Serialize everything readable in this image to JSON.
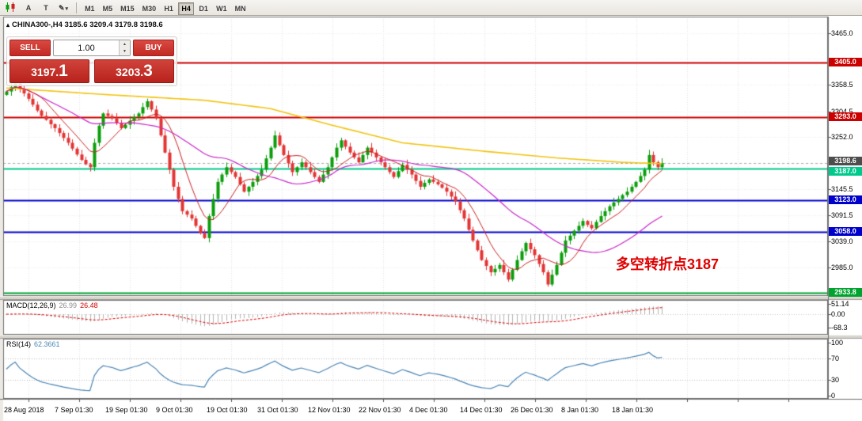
{
  "toolbar": {
    "buttons": [
      {
        "name": "charts-icon"
      },
      {
        "name": "label-tool",
        "glyph": "A"
      },
      {
        "name": "text-tool",
        "glyph": "T"
      },
      {
        "name": "pencil-tool",
        "glyph": "✎",
        "caret": "▾"
      }
    ],
    "timeframes": [
      "M1",
      "M5",
      "M15",
      "M30",
      "H1",
      "H4",
      "D1",
      "W1",
      "MN"
    ],
    "active_timeframe": "H4"
  },
  "trade_panel": {
    "sell_label": "SELL",
    "buy_label": "BUY",
    "volume": "1.00",
    "bid": "3197.1",
    "ask": "3203.3",
    "spin_up": "▲",
    "spin_down": "▼"
  },
  "chart": {
    "marker": "▴",
    "title": "CHINA300-,H4 3185.6 3209.4 3179.8 3198.6",
    "annotation": "多空转折点3187",
    "price_ticks": [
      3465.0,
      3358.5,
      3304.5,
      3252.0,
      3145.5,
      3091.5,
      3039.0,
      2985.0
    ],
    "levels": [
      {
        "price": 3405.0,
        "label": "3405.0",
        "color": "#cc0000"
      },
      {
        "price": 3293.0,
        "label": "3293.0",
        "color": "#cc0000"
      },
      {
        "price": 3187.0,
        "label": "3187.0",
        "color": "#00c98c"
      },
      {
        "price": 3123.0,
        "label": "3123.0",
        "color": "#0000cc"
      },
      {
        "price": 3058.0,
        "label": "3058.0",
        "color": "#0000cc"
      },
      {
        "price": 2933.8,
        "label": "2933.8",
        "color": "#00a32e"
      }
    ],
    "current_price": 3198.6,
    "current_price_label": "3198.6",
    "current_price_color": "#4d4d4d",
    "time_labels": [
      "28 Aug 2018",
      "7 Sep 01:30",
      "19 Sep 01:30",
      "9 Oct 01:30",
      "19 Oct 01:30",
      "31 Oct 01:30",
      "12 Nov 01:30",
      "22 Nov 01:30",
      "4 Dec 01:30",
      "14 Dec 01:30",
      "26 Dec 01:30",
      "8 Jan 01:30",
      "18 Jan 01:30"
    ]
  },
  "macd": {
    "label": "MACD(12,26,9)",
    "value_main": "26.99",
    "value_signal": "26.48",
    "ticks": [
      {
        "v": 51.14,
        "label": "51.14"
      },
      {
        "v": 0,
        "label": "0.00"
      },
      {
        "v": -68.3,
        "label": "-68.3"
      }
    ]
  },
  "rsi": {
    "label": "RSI(14)",
    "value": "62.3661",
    "ticks": [
      {
        "v": 100,
        "label": "100"
      },
      {
        "v": 70,
        "label": "70"
      },
      {
        "v": 30,
        "label": "30"
      },
      {
        "v": 0,
        "label": "0"
      }
    ],
    "levels": [
      70,
      30
    ]
  },
  "chart_data": {
    "type": "candlestick",
    "symbol": "CHINA300-",
    "timeframe": "H4",
    "ohlc_current": {
      "open": 3185.6,
      "high": 3209.4,
      "low": 3179.8,
      "close": 3198.6
    },
    "y_axis_range": [
      2927,
      3497
    ],
    "first_open": 3338,
    "closes": [
      3345,
      3354,
      3362,
      3350,
      3341,
      3330,
      3318,
      3306,
      3295,
      3287,
      3278,
      3270,
      3260,
      3250,
      3240,
      3228,
      3216,
      3205,
      3196,
      3190,
      3240,
      3275,
      3300,
      3295,
      3290,
      3280,
      3270,
      3277,
      3285,
      3293,
      3300,
      3313,
      3325,
      3308,
      3290,
      3255,
      3220,
      3185,
      3150,
      3125,
      3100,
      3093,
      3085,
      3070,
      3055,
      3045,
      3090,
      3125,
      3160,
      3175,
      3190,
      3180,
      3170,
      3155,
      3140,
      3150,
      3160,
      3172,
      3185,
      3208,
      3230,
      3255,
      3235,
      3215,
      3198,
      3180,
      3190,
      3200,
      3190,
      3180,
      3170,
      3160,
      3175,
      3190,
      3210,
      3230,
      3245,
      3232,
      3220,
      3210,
      3200,
      3215,
      3230,
      3220,
      3210,
      3200,
      3190,
      3180,
      3170,
      3182,
      3195,
      3185,
      3175,
      3162,
      3150,
      3158,
      3165,
      3160,
      3155,
      3148,
      3140,
      3130,
      3120,
      3102,
      3085,
      3062,
      3040,
      3020,
      3000,
      2988,
      2975,
      2982,
      2990,
      2975,
      2960,
      2980,
      3000,
      3018,
      3035,
      3022,
      3010,
      2992,
      2975,
      2950,
      2970,
      2990,
      3015,
      3040,
      3050,
      3060,
      3070,
      3080,
      3072,
      3065,
      3078,
      3090,
      3100,
      3110,
      3118,
      3125,
      3133,
      3140,
      3150,
      3160,
      3172,
      3185,
      3215,
      3200,
      3190,
      3198.6
    ],
    "ma_slow_points": [
      [
        0,
        3352
      ],
      [
        22,
        3339
      ],
      [
        45,
        3327
      ],
      [
        60,
        3310
      ],
      [
        74,
        3276
      ],
      [
        90,
        3240
      ],
      [
        107,
        3224
      ],
      [
        125,
        3209
      ],
      [
        140,
        3200
      ],
      [
        149,
        3197
      ]
    ],
    "colors": {
      "bull": "#0b9e0b",
      "bear": "#e43434",
      "ma_fast": "#cc2222",
      "ma_mid": "#c928c9",
      "ma_slow": "#f2c40f",
      "macd_hist": "#b4b4b4",
      "macd_signal": "#dd0000",
      "rsi_line": "#4a85b5",
      "annotation": "#e00000",
      "current_line": "#ababab"
    }
  }
}
